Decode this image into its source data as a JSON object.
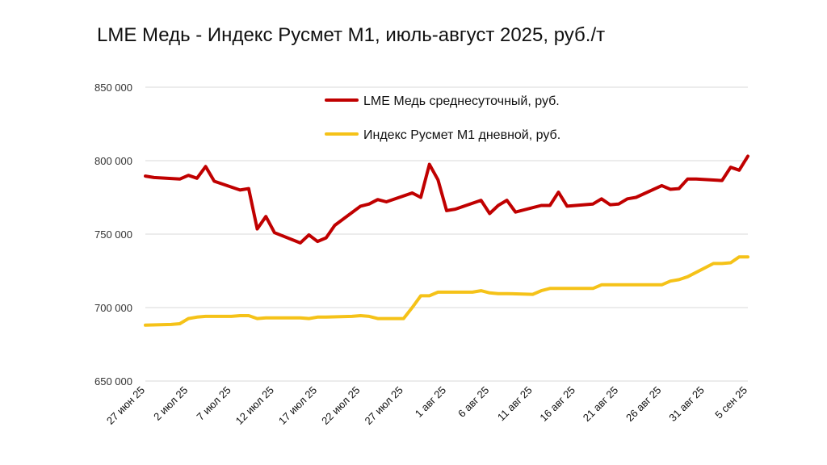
{
  "chart_data": {
    "type": "line",
    "title": "LME Медь - Индекс Русмет М1, июль-август 2025, руб./т",
    "xlabel": "",
    "ylabel": "",
    "ylim": [
      650000,
      850000
    ],
    "yticks": [
      650000,
      700000,
      750000,
      800000,
      850000
    ],
    "ytick_labels": [
      "650 000",
      "700 000",
      "750 000",
      "800 000",
      "850 000"
    ],
    "x_range_days": [
      0,
      70
    ],
    "xtick_days": [
      0,
      5,
      10,
      15,
      20,
      25,
      30,
      35,
      40,
      45,
      50,
      55,
      60,
      65,
      70
    ],
    "xtick_labels": [
      "27 июн 25",
      "2 июл 25",
      "7 июл 25",
      "12 июл 25",
      "17 июл 25",
      "22 июл 25",
      "27 июл 25",
      "1 авг 25",
      "6 авг 25",
      "11 авг 25",
      "16 авг 25",
      "21 авг 25",
      "26 авг 25",
      "31 авг 25",
      "5 сен 25"
    ],
    "grid": true,
    "legend_position": "top-center",
    "series": [
      {
        "name": "LME Медь среднесуточный, руб.",
        "color": "#c00000",
        "x_days": [
          0,
          1,
          4,
          5,
          6,
          7,
          8,
          11,
          12,
          13,
          14,
          15,
          18,
          19,
          20,
          21,
          22,
          25,
          26,
          27,
          28,
          31,
          32,
          33,
          34,
          35,
          36,
          39,
          40,
          41,
          42,
          43,
          46,
          47,
          48,
          49,
          52,
          53,
          54,
          55,
          56,
          57,
          60,
          61,
          62,
          63,
          64,
          67,
          68,
          69,
          70
        ],
        "values": [
          789500,
          788500,
          787500,
          790000,
          788000,
          796000,
          786000,
          780000,
          781000,
          753500,
          762000,
          751000,
          744000,
          749500,
          745000,
          747500,
          756000,
          769000,
          770500,
          773500,
          772000,
          778000,
          775000,
          797500,
          787000,
          766000,
          767000,
          773000,
          764000,
          769500,
          773000,
          765000,
          769500,
          769500,
          778500,
          769000,
          770500,
          774000,
          770000,
          770500,
          774000,
          775000,
          783000,
          780500,
          781000,
          787500,
          787500,
          786500,
          795500,
          793500,
          803000
        ]
      },
      {
        "name": "Индекс Русмет М1 дневной, руб.",
        "color": "#f5c218",
        "x_days": [
          0,
          3,
          4,
          5,
          6,
          7,
          10,
          11,
          12,
          13,
          14,
          17,
          18,
          19,
          20,
          21,
          24,
          25,
          26,
          27,
          30,
          31,
          32,
          33,
          34,
          35,
          38,
          39,
          40,
          41,
          42,
          45,
          46,
          47,
          48,
          49,
          52,
          53,
          54,
          55,
          56,
          59,
          60,
          61,
          62,
          63,
          66,
          67,
          68,
          69,
          70
        ],
        "values": [
          688000,
          688500,
          689000,
          692500,
          693500,
          694000,
          694000,
          694500,
          694500,
          692500,
          693000,
          693000,
          693000,
          692500,
          693500,
          693500,
          694000,
          694500,
          694000,
          692500,
          692500,
          700000,
          708000,
          708000,
          710500,
          710500,
          710500,
          711500,
          710000,
          709500,
          709500,
          709000,
          711500,
          713000,
          713000,
          713000,
          713000,
          715500,
          715500,
          715500,
          715500,
          715500,
          715500,
          718000,
          719000,
          721000,
          730000,
          730000,
          730500,
          734500,
          734500
        ]
      }
    ]
  }
}
